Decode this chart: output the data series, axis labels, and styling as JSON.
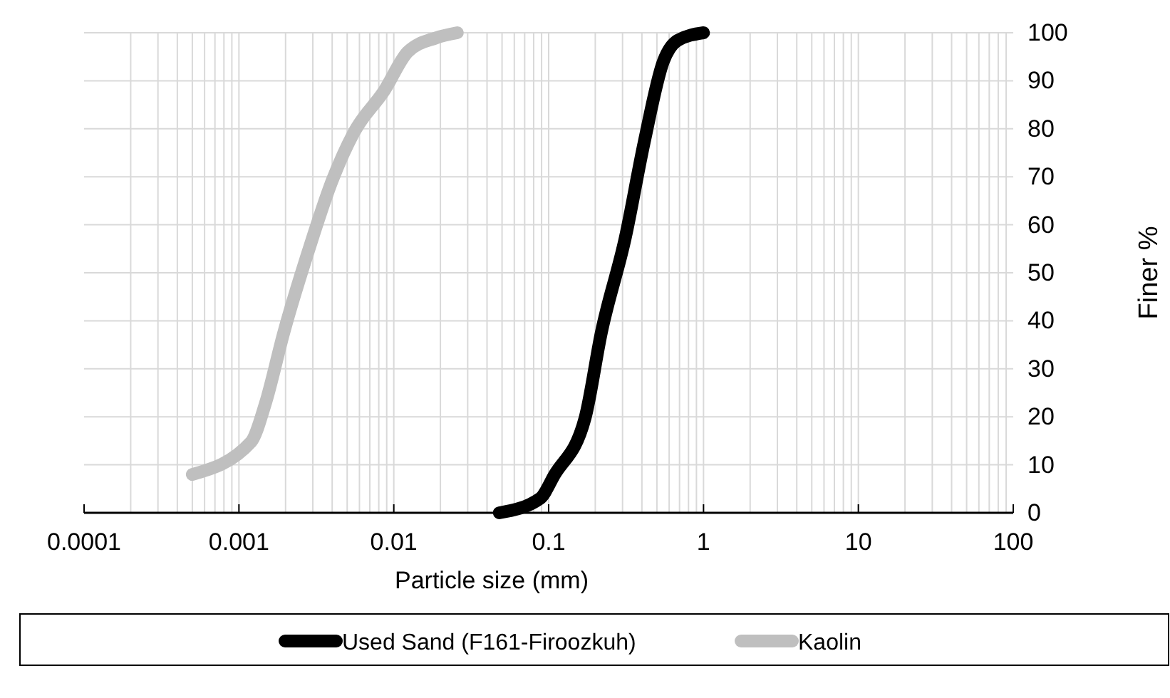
{
  "chart_data": {
    "type": "line",
    "xlabel": "Particle size (mm)",
    "ylabel": "Finer %",
    "log": "x",
    "grid": true,
    "legend": "bottom",
    "marker": "none",
    "line_style": "solid",
    "xlim": [
      0.0001,
      100
    ],
    "xticks": [
      0.0001,
      0.001,
      0.01,
      0.1,
      1,
      10,
      100
    ],
    "ylim": [
      0,
      100
    ],
    "yticks": [
      0,
      10,
      20,
      30,
      40,
      50,
      60,
      70,
      80,
      90,
      100
    ],
    "series": [
      {
        "name": "Used Sand (F161-Firoozkuh)",
        "color": "#000000",
        "x": [
          0.048,
          0.088,
          0.109,
          0.172,
          0.219,
          0.313,
          0.414,
          0.55,
          0.68,
          1.0
        ],
        "values": [
          0,
          3,
          7.9,
          19.8,
          37.6,
          57.4,
          77.2,
          94,
          98.4,
          100
        ]
      },
      {
        "name": "Kaolin",
        "color": "#bfbfbf",
        "x": [
          0.0005,
          0.0012,
          0.00148,
          0.00195,
          0.0028,
          0.004,
          0.0055,
          0.0087,
          0.0123,
          0.0186,
          0.0257
        ],
        "values": [
          8,
          14.8,
          22.7,
          37.6,
          54.4,
          69.2,
          79.1,
          88,
          96,
          98.9,
          100
        ]
      }
    ]
  }
}
